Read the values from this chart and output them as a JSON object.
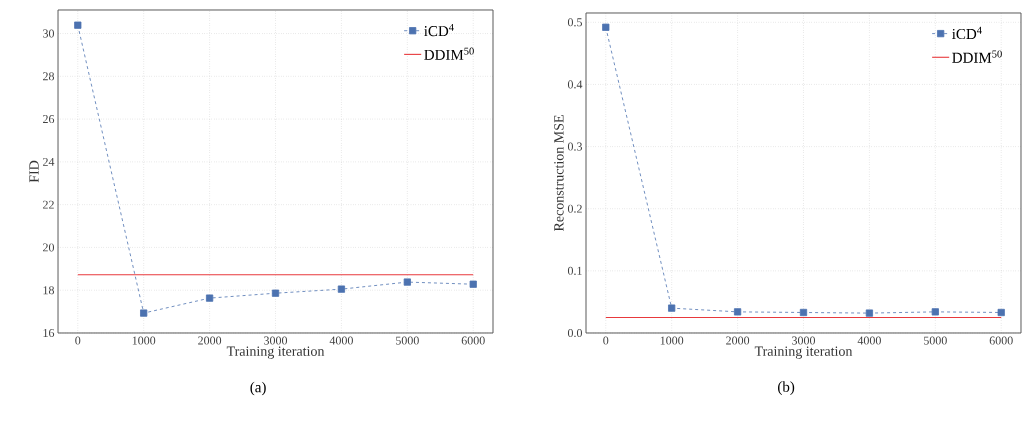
{
  "chart_data": [
    {
      "type": "line",
      "xlabel": "Training iteration",
      "ylabel": "FID",
      "xlim": [
        -300,
        6300
      ],
      "ylim": [
        16,
        31.1
      ],
      "xticks": [
        0,
        1000,
        2000,
        3000,
        4000,
        5000,
        6000
      ],
      "yticks": [
        16,
        18,
        20,
        22,
        24,
        26,
        28,
        30
      ],
      "grid": true,
      "legend": "top right",
      "annotations": [
        "(a)"
      ],
      "series": [
        {
          "name": "iCD$^{4}$",
          "color": "#4c72b0",
          "marker": "square",
          "line_style": "dashed",
          "x": [
            0,
            1000,
            2000,
            3000,
            4000,
            5000,
            6000
          ],
          "values": [
            30.39,
            16.93,
            17.63,
            17.86,
            18.05,
            18.38,
            18.28
          ]
        },
        {
          "name": "DDIM$^{50}$",
          "color": "#e8393c",
          "marker": "none",
          "line_style": "solid",
          "x": [
            0,
            6000
          ],
          "values": [
            18.72,
            18.72
          ]
        }
      ]
    },
    {
      "type": "line",
      "xlabel": "Training iteration",
      "ylabel": "Reconstruction MSE",
      "xlim": [
        -300,
        6300
      ],
      "ylim": [
        0,
        0.515
      ],
      "xticks": [
        0,
        1000,
        2000,
        3000,
        4000,
        5000,
        6000
      ],
      "yticks": [
        {
          "value": 0,
          "label": "0.0"
        },
        0.1,
        0.2,
        0.3,
        0.4,
        0.5
      ],
      "grid": true,
      "legend": "top right",
      "annotations": [
        "(b)"
      ],
      "series": [
        {
          "name": "iCD$^{4}$",
          "color": "#4c72b0",
          "marker": "square",
          "line_style": "dashed",
          "x": [
            0,
            1000,
            2000,
            3000,
            4000,
            5000,
            6000
          ],
          "values": [
            0.492,
            0.04,
            0.034,
            0.033,
            0.032,
            0.034,
            0.033
          ]
        },
        {
          "name": "DDIM$^{50}$",
          "color": "#e8393c",
          "marker": "none",
          "line_style": "solid",
          "x": [
            0,
            6000
          ],
          "values": [
            0.025,
            0.025
          ]
        }
      ]
    }
  ]
}
